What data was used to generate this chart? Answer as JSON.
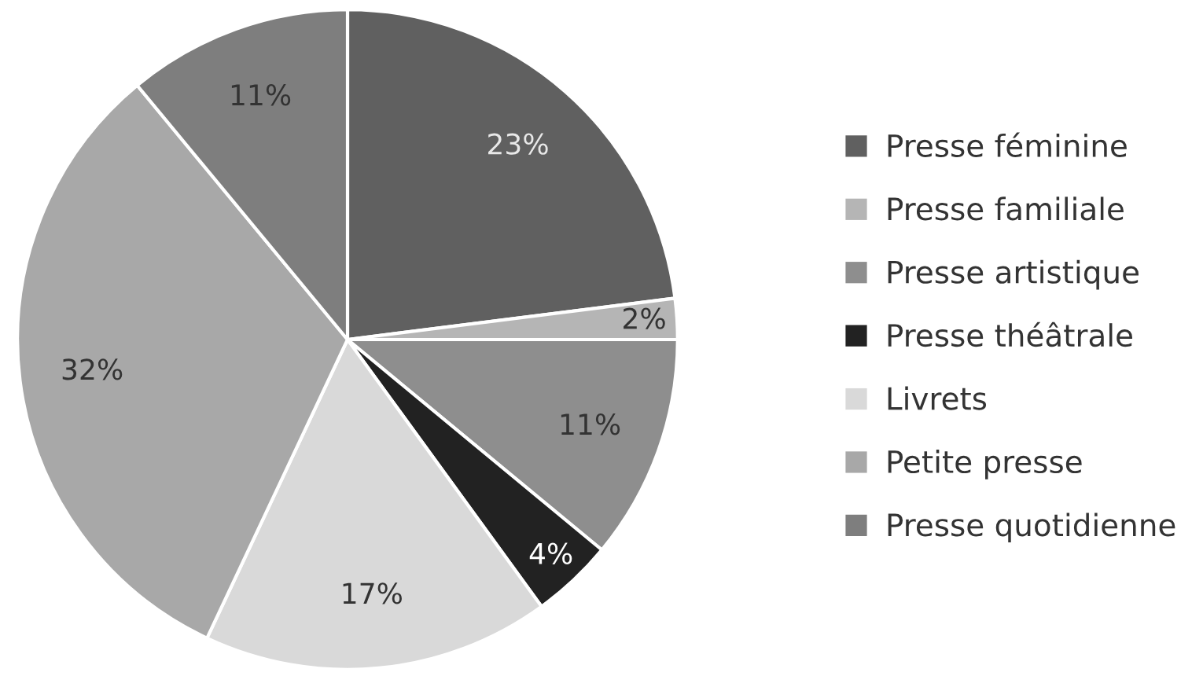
{
  "chart_data": {
    "type": "pie",
    "categories": [
      "Presse féminine",
      "Presse familiale",
      "Presse artistique",
      "Presse théâtrale",
      "Livrets",
      "Petite presse",
      "Presse quotidienne"
    ],
    "values": [
      23,
      2,
      11,
      4,
      17,
      32,
      11
    ],
    "value_labels": [
      "23%",
      "2%",
      "11%",
      "4%",
      "17%",
      "32%",
      "11%"
    ],
    "colors": [
      "#606060",
      "#b5b5b5",
      "#8e8e8e",
      "#222222",
      "#d9d9d9",
      "#a8a8a8",
      "#7e7e7e"
    ],
    "legend": "right"
  }
}
